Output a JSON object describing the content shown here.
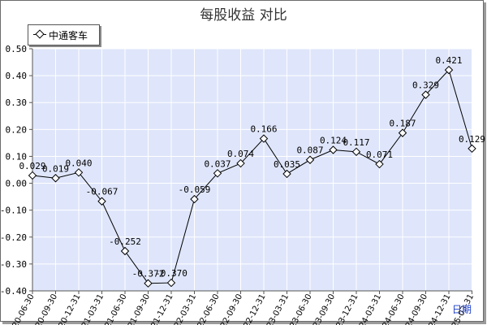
{
  "chart_data": {
    "type": "line",
    "title": "每股收益  对比",
    "xlabel": "日期",
    "ylabel": "",
    "ylim": [
      -0.4,
      0.5
    ],
    "yticks": [
      "0.50",
      "0.40",
      "0.30",
      "0.20",
      "0.10",
      "0.00",
      "-0.10",
      "-0.20",
      "-0.30",
      "-0.40"
    ],
    "grid": true,
    "legend_position": "top-left",
    "categories": [
      "2020-06-30",
      "2020-09-30",
      "2020-12-31",
      "2021-03-31",
      "2021-06-30",
      "2021-09-30",
      "2021-12-31",
      "2022-03-31",
      "2022-06-30",
      "2022-09-30",
      "2022-12-31",
      "2023-03-31",
      "2023-06-30",
      "2023-09-30",
      "2023-12-31",
      "2024-03-31",
      "2024-06-30",
      "2024-09-30",
      "2024-12-31",
      "2025-03-31"
    ],
    "series": [
      {
        "name": "中通客车",
        "values": [
          0.029,
          0.019,
          0.04,
          -0.067,
          -0.252,
          -0.372,
          -0.37,
          -0.059,
          0.037,
          0.074,
          0.166,
          0.035,
          0.087,
          0.124,
          0.117,
          0.071,
          0.187,
          0.329,
          0.421,
          0.129
        ],
        "labels": [
          "0.029",
          "0.019",
          "0.040",
          "-0.067",
          "-0.252",
          "-0.372",
          "-0.370",
          "-0.059",
          "0.037",
          "0.074",
          "0.166",
          "0.035",
          "0.087",
          "0.124",
          "0.117",
          "0.071",
          "0.187",
          "0.329",
          "0.421",
          "0.129"
        ]
      }
    ]
  }
}
